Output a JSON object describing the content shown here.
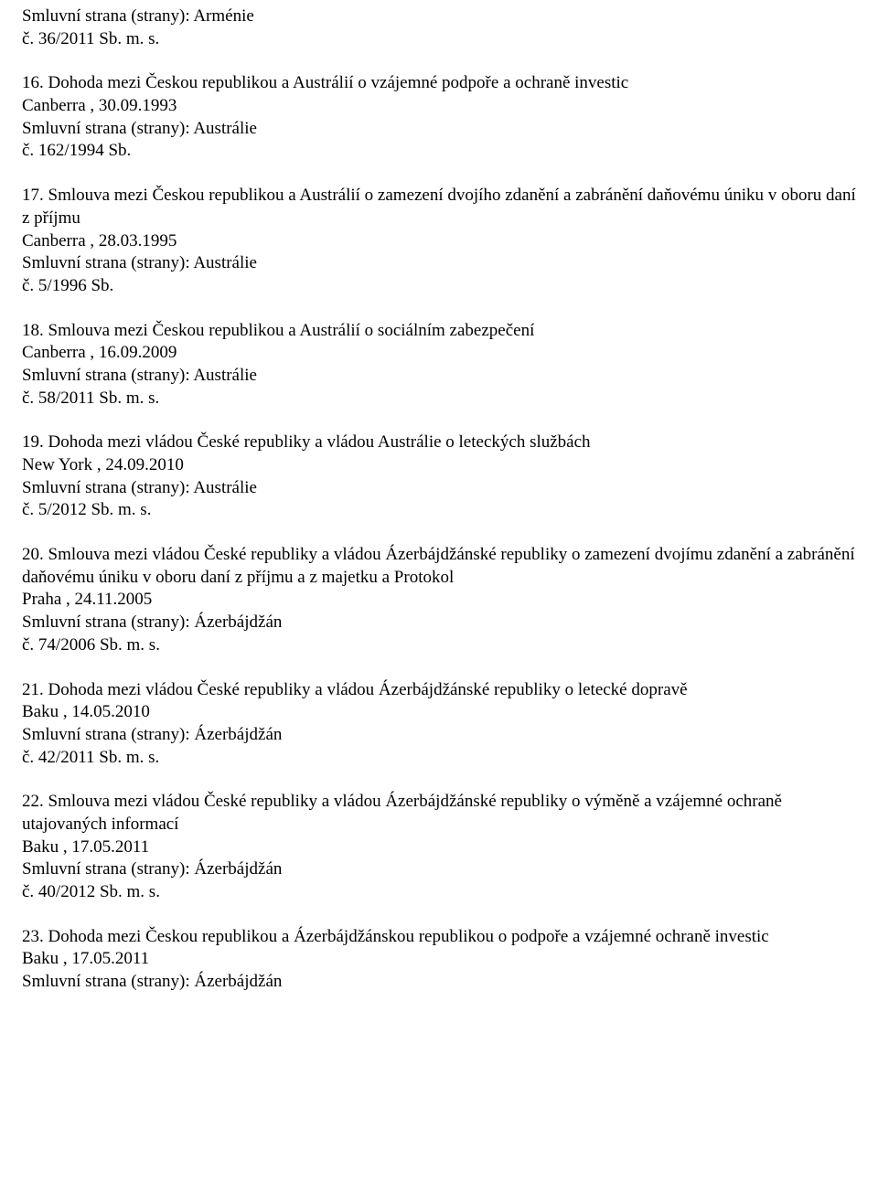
{
  "fragment0": {
    "parties": "Smluvní strana (strany): Arménie",
    "ref": "č. 36/2011 Sb. m. s."
  },
  "entries": [
    {
      "title": "16. Dohoda mezi Českou republikou a Austrálií o vzájemné podpoře a ochraně investic",
      "place_date": "Canberra , 30.09.1993",
      "parties": "Smluvní strana (strany): Austrálie",
      "ref": "č. 162/1994 Sb."
    },
    {
      "title": "17. Smlouva mezi Českou republikou a Austrálií o zamezení dvojího zdanění a zabránění daňovému úniku v oboru daní z příjmu",
      "place_date": "Canberra , 28.03.1995",
      "parties": "Smluvní strana (strany): Austrálie",
      "ref": "č. 5/1996 Sb."
    },
    {
      "title": "18. Smlouva mezi Českou republikou a Austrálií o sociálním zabezpečení",
      "place_date": "Canberra , 16.09.2009",
      "parties": "Smluvní strana (strany): Austrálie",
      "ref": "č. 58/2011 Sb. m. s."
    },
    {
      "title": "19. Dohoda mezi vládou České republiky a vládou Austrálie o leteckých službách",
      "place_date": "New York , 24.09.2010",
      "parties": "Smluvní strana (strany): Austrálie",
      "ref": "č. 5/2012 Sb. m. s."
    },
    {
      "title": "20. Smlouva mezi vládou České republiky a vládou Ázerbájdžánské republiky o zamezení dvojímu zdanění a zabránění daňovému úniku v oboru daní z příjmu a z majetku a Protokol",
      "place_date": "Praha , 24.11.2005",
      "parties": "Smluvní strana (strany): Ázerbájdžán",
      "ref": "č. 74/2006 Sb. m. s."
    },
    {
      "title": "21. Dohoda mezi vládou České republiky a vládou Ázerbájdžánské republiky o letecké dopravě",
      "place_date": "Baku , 14.05.2010",
      "parties": "Smluvní strana (strany): Ázerbájdžán",
      "ref": "č. 42/2011 Sb. m. s."
    },
    {
      "title": "22. Smlouva mezi vládou České republiky a vládou Ázerbájdžánské republiky o výměně a vzájemné ochraně utajovaných informací",
      "place_date": "Baku , 17.05.2011",
      "parties": "Smluvní strana (strany): Ázerbájdžán",
      "ref": "č. 40/2012 Sb. m. s."
    },
    {
      "title": "23. Dohoda mezi Českou republikou a Ázerbájdžánskou republikou o podpoře a vzájemné ochraně investic",
      "place_date": "Baku , 17.05.2011",
      "parties": "Smluvní strana (strany): Ázerbájdžán",
      "ref": ""
    }
  ]
}
